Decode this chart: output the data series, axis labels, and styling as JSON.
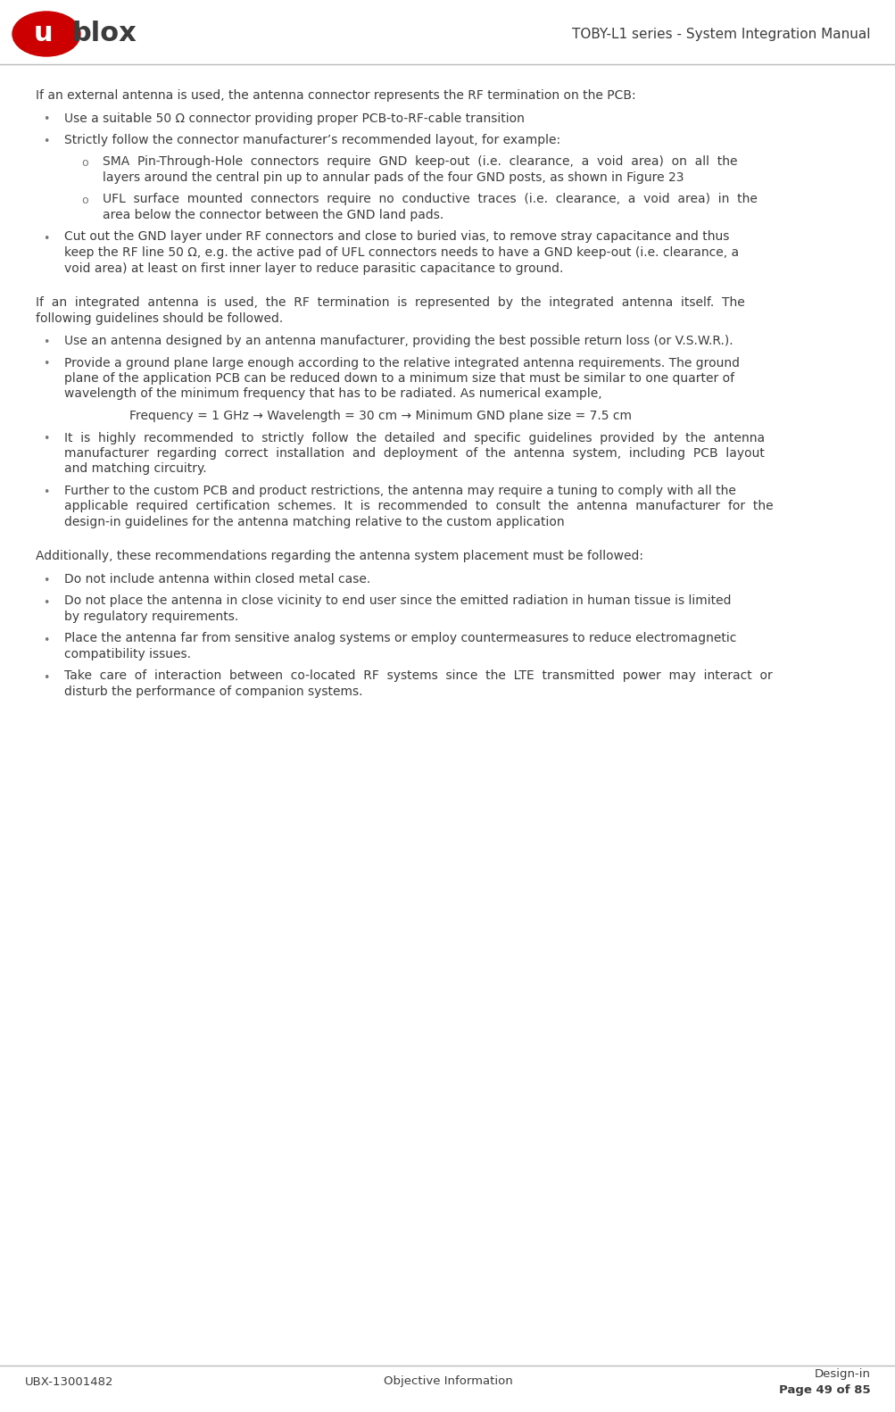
{
  "title_text": "TOBY-L1 series - System Integration Manual",
  "footer_left": "UBX-13001482",
  "footer_center": "Objective Information",
  "footer_right": "Design-in",
  "footer_page": "Page 49 of 85",
  "body_color": "#3c3c3c",
  "title_color": "#3c3c3c",
  "footer_color": "#3c3c3c",
  "background_color": "#ffffff",
  "logo_red": "#cc0000",
  "logo_dark": "#3c3c3c",
  "header_sep_color": "#bbbbbb",
  "footer_sep_color": "#bbbbbb",
  "content": [
    {
      "type": "para",
      "text": "If an external antenna is used, the antenna connector represents the RF termination on the PCB:"
    },
    {
      "type": "bullet1",
      "text": "Use a suitable 50 Ω connector providing proper PCB-to-RF-cable transition"
    },
    {
      "type": "bullet1",
      "text": "Strictly follow the connector manufacturer’s recommended layout, for example:"
    },
    {
      "type": "bullet2",
      "text": "SMA  Pin-Through-Hole  connectors  require  GND  keep-out  (i.e.  clearance,  a  void  area)  on  all  the\nlayers around the central pin up to annular pads of the four GND posts, as shown in Figure 23"
    },
    {
      "type": "bullet2",
      "text": "UFL  surface  mounted  connectors  require  no  conductive  traces  (i.e.  clearance,  a  void  area)  in  the\narea below the connector between the GND land pads."
    },
    {
      "type": "bullet1",
      "text": "Cut out the GND layer under RF connectors and close to buried vias, to remove stray capacitance and thus\nkeep the RF line 50 Ω, e.g. the active pad of UFL connectors needs to have a GND keep-out (i.e. clearance, a\nvoid area) at least on first inner layer to reduce parasitic capacitance to ground."
    },
    {
      "type": "spacer"
    },
    {
      "type": "para",
      "text": "If  an  integrated  antenna  is  used,  the  RF  termination  is  represented  by  the  integrated  antenna  itself.  The\nfollowing guidelines should be followed."
    },
    {
      "type": "bullet1",
      "text": "Use an antenna designed by an antenna manufacturer, providing the best possible return loss (or V.S.W.R.)."
    },
    {
      "type": "bullet1",
      "text": "Provide a ground plane large enough according to the relative integrated antenna requirements. The ground\nplane of the application PCB can be reduced down to a minimum size that must be similar to one quarter of\nwavelength of the minimum frequency that has to be radiated. As numerical example,"
    },
    {
      "type": "example",
      "text": "Frequency = 1 GHz → Wavelength = 30 cm → Minimum GND plane size = 7.5 cm"
    },
    {
      "type": "bullet1",
      "text": "It  is  highly  recommended  to  strictly  follow  the  detailed  and  specific  guidelines  provided  by  the  antenna\nmanufacturer  regarding  correct  installation  and  deployment  of  the  antenna  system,  including  PCB  layout\nand matching circuitry."
    },
    {
      "type": "bullet1",
      "text": "Further to the custom PCB and product restrictions, the antenna may require a tuning to comply with all the\napplicable  required  certification  schemes.  It  is  recommended  to  consult  the  antenna  manufacturer  for  the\ndesign-in guidelines for the antenna matching relative to the custom application"
    },
    {
      "type": "spacer"
    },
    {
      "type": "para",
      "text": "Additionally, these recommendations regarding the antenna system placement must be followed:"
    },
    {
      "type": "bullet1",
      "text": "Do not include antenna within closed metal case."
    },
    {
      "type": "bullet1",
      "text": "Do not place the antenna in close vicinity to end user since the emitted radiation in human tissue is limited\nby regulatory requirements."
    },
    {
      "type": "bullet1",
      "text": "Place the antenna far from sensitive analog systems or employ countermeasures to reduce electromagnetic\ncompatibility issues."
    },
    {
      "type": "bullet1",
      "text": "Take  care  of  interaction  between  co-located  RF  systems  since  the  LTE  transmitted  power  may  interact  or\ndisturb the performance of companion systems."
    }
  ]
}
